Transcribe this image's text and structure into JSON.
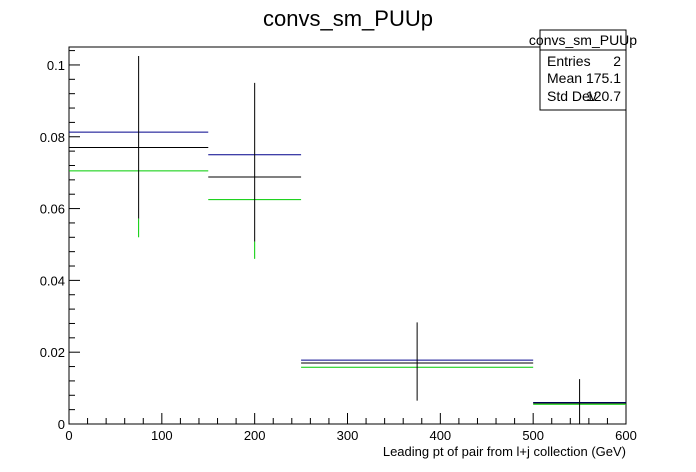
{
  "chart_data": {
    "type": "histogram",
    "title": "convs_sm_PUUp",
    "xlabel": "Leading pt of pair from l+j collection (GeV)",
    "ylabel": "",
    "xlim": [
      0,
      600
    ],
    "ylim": [
      0,
      0.105
    ],
    "x_ticks": [
      0,
      100,
      200,
      300,
      400,
      500,
      600
    ],
    "x_tick_labels": [
      "0",
      "100",
      "200",
      "300",
      "400",
      "500",
      "600"
    ],
    "y_ticks": [
      0,
      0.02,
      0.04,
      0.06,
      0.08,
      0.1
    ],
    "y_tick_labels": [
      "0",
      "0.02",
      "0.04",
      "0.06",
      "0.08",
      "0.1"
    ],
    "bin_edges": [
      0,
      150,
      250,
      500,
      600
    ],
    "series": [
      {
        "color": "#00008b",
        "values": [
          0.0813,
          0.075,
          0.0178,
          0.006
        ]
      },
      {
        "color": "#000000",
        "values": [
          0.077,
          0.0688,
          0.017,
          0.0058
        ],
        "errors_low": [
          0.077,
          0.0688,
          0.017,
          0.0058
        ],
        "errors_high": [
          0.1025,
          0.095,
          0.0283,
          0.0125
        ],
        "errors_down_to": [
          0.0572,
          0.0508,
          0.0065,
          0.0
        ]
      },
      {
        "color": "#00cc00",
        "values": [
          0.0705,
          0.0625,
          0.0158,
          0.0055
        ],
        "errors_down_to": [
          0.052,
          0.046,
          0.0,
          0.0
        ],
        "errors_up_to": [
          0.0705,
          0.0625,
          0.0158,
          0.0055
        ]
      }
    ],
    "stats_box": {
      "title": "convs_sm_PUUp",
      "rows": [
        {
          "label": "Entries",
          "value": "2"
        },
        {
          "label": "Mean",
          "value": "175.1"
        },
        {
          "label": "Std Dev",
          "value": "120.7"
        }
      ]
    }
  }
}
